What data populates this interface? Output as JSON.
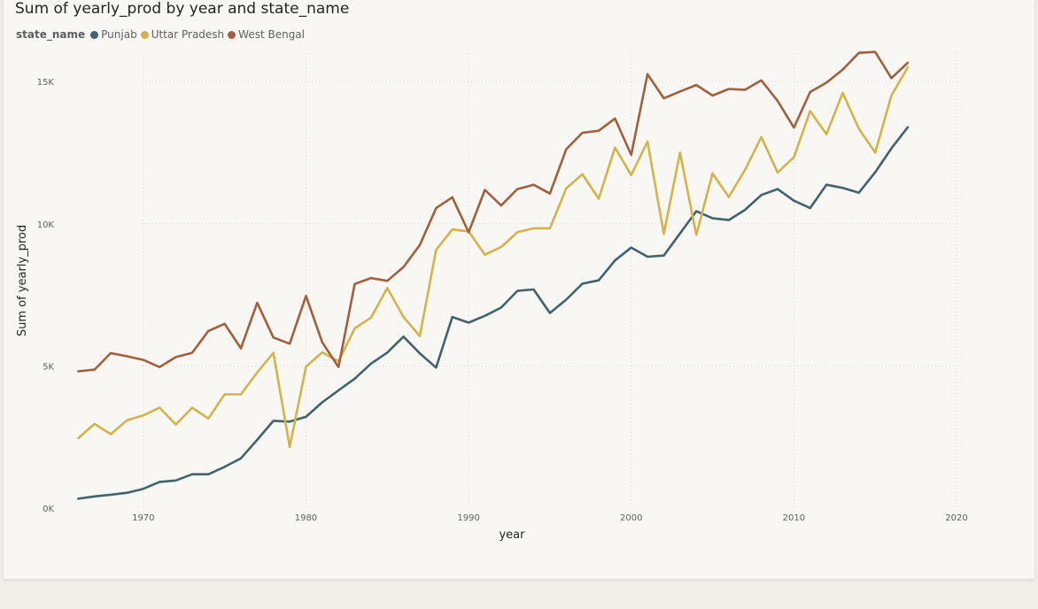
{
  "chart_data": {
    "type": "line",
    "title": "Sum of yearly_prod by year and state_name",
    "xlabel": "year",
    "ylabel": "Sum of yearly_prod",
    "xlim": [
      1965,
      2020
    ],
    "ylim": [
      0,
      16000
    ],
    "x_ticks": [
      "1970",
      "1980",
      "1990",
      "2000",
      "2010",
      "2020"
    ],
    "y_ticks": [
      "0K",
      "5K",
      "10K",
      "15K"
    ],
    "grid": true,
    "legend": {
      "title": "state_name",
      "position": "top-left"
    },
    "x": [
      1966,
      1967,
      1968,
      1969,
      1970,
      1971,
      1972,
      1973,
      1974,
      1975,
      1976,
      1977,
      1978,
      1979,
      1980,
      1981,
      1982,
      1983,
      1984,
      1985,
      1986,
      1987,
      1988,
      1989,
      1990,
      1991,
      1992,
      1993,
      1994,
      1995,
      1996,
      1997,
      1998,
      1999,
      2000,
      2001,
      2002,
      2003,
      2004,
      2005,
      2006,
      2007,
      2008,
      2009,
      2010,
      2011,
      2012,
      2013,
      2014,
      2015,
      2016,
      2017
    ],
    "series": [
      {
        "name": "Punjab",
        "color": "#41636e",
        "values": [
          330,
          410,
          470,
          540,
          680,
          920,
          970,
          1190,
          1190,
          1450,
          1750,
          2400,
          3070,
          3040,
          3210,
          3720,
          4140,
          4550,
          5080,
          5470,
          6030,
          5440,
          4940,
          6720,
          6520,
          6760,
          7050,
          7640,
          7690,
          6860,
          7330,
          7890,
          8010,
          8710,
          9160,
          8840,
          8880,
          9660,
          10440,
          10190,
          10130,
          10490,
          11010,
          11220,
          10810,
          10550,
          11370,
          11260,
          11090,
          11810,
          12650,
          13390
        ]
      },
      {
        "name": "Uttar Pradesh",
        "color": "#d4b24c",
        "values": [
          2460,
          2960,
          2600,
          3090,
          3260,
          3530,
          2940,
          3530,
          3150,
          4000,
          4000,
          4770,
          5460,
          2150,
          4970,
          5480,
          5160,
          6320,
          6700,
          7740,
          6720,
          6050,
          9080,
          9800,
          9730,
          8910,
          9180,
          9700,
          9840,
          9840,
          11240,
          11740,
          10880,
          12680,
          11710,
          12890,
          9640,
          12500,
          9610,
          11770,
          10940,
          11900,
          13050,
          11800,
          12340,
          13960,
          13150,
          14600,
          13340,
          12500,
          14510,
          15500
        ]
      },
      {
        "name": "West Bengal",
        "color": "#a0603c",
        "values": [
          4810,
          4870,
          5450,
          5340,
          5210,
          4960,
          5310,
          5460,
          6230,
          6480,
          5620,
          7220,
          6000,
          5780,
          7460,
          5830,
          4960,
          7880,
          8090,
          7990,
          8480,
          9250,
          10550,
          10930,
          9700,
          11190,
          10640,
          11220,
          11370,
          11060,
          12620,
          13200,
          13270,
          13700,
          12420,
          15260,
          14410,
          14650,
          14880,
          14510,
          14740,
          14710,
          15040,
          14320,
          13380,
          14630,
          14960,
          15420,
          16010,
          16040,
          15120,
          15660
        ]
      }
    ]
  }
}
